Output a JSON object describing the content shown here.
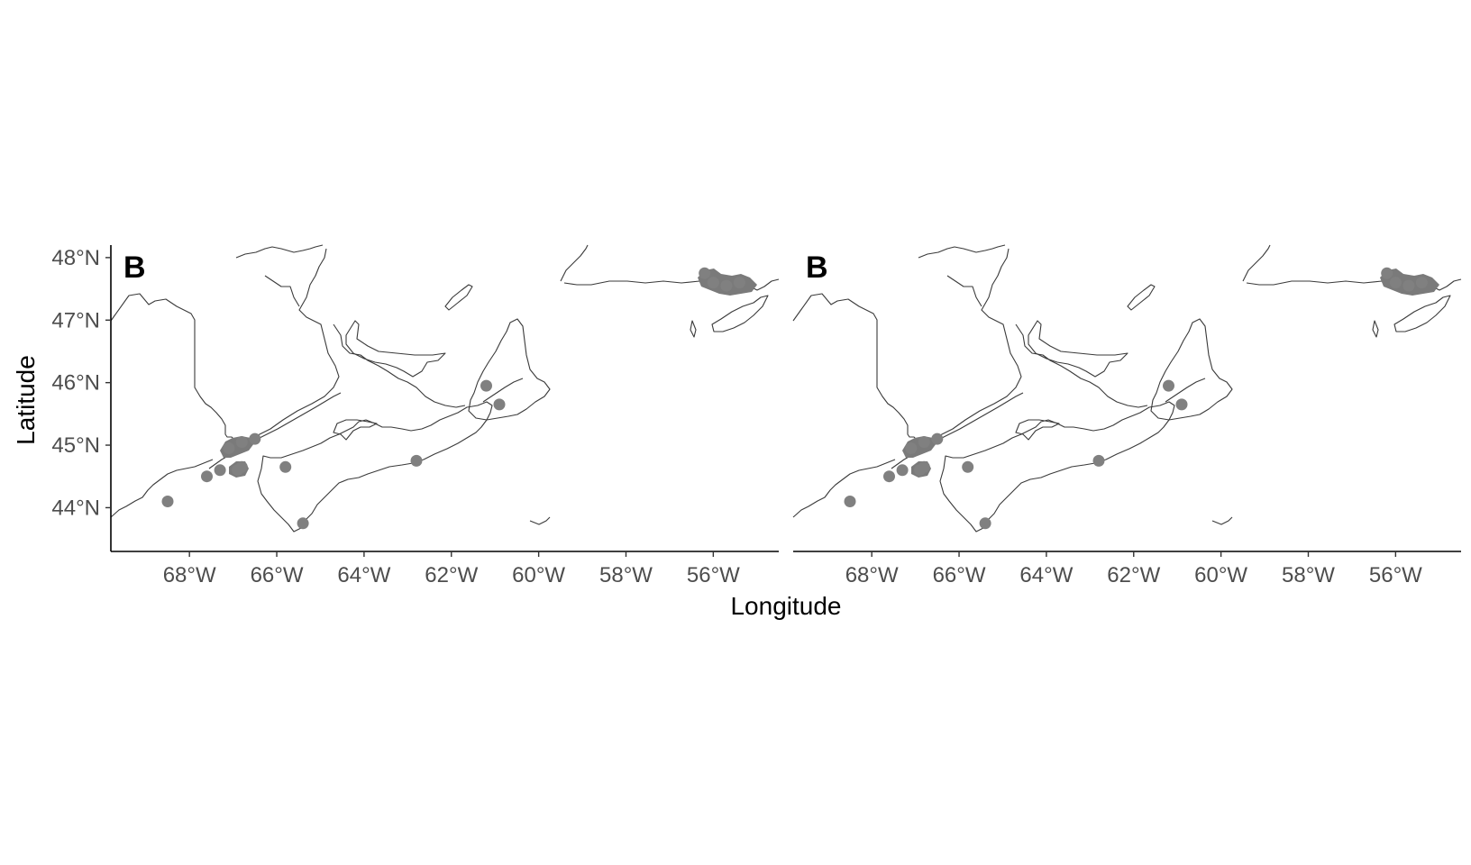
{
  "chart_data": {
    "type": "scatter",
    "x_axis_label": "Longitude",
    "y_axis_label": "Latitude",
    "x_range": [
      -69.8,
      -54.5
    ],
    "y_range": [
      43.3,
      48.2
    ],
    "x_ticks": [
      {
        "value": -68,
        "label": "68°W"
      },
      {
        "value": -66,
        "label": "66°W"
      },
      {
        "value": -64,
        "label": "64°W"
      },
      {
        "value": -62,
        "label": "62°W"
      },
      {
        "value": -60,
        "label": "60°W"
      },
      {
        "value": -58,
        "label": "58°W"
      },
      {
        "value": -56,
        "label": "56°W"
      }
    ],
    "y_ticks": [
      {
        "value": 48,
        "label": "48°N"
      },
      {
        "value": 47,
        "label": "47°N"
      },
      {
        "value": 46,
        "label": "46°N"
      },
      {
        "value": 45,
        "label": "45°N"
      },
      {
        "value": 44,
        "label": "44°N"
      }
    ],
    "grid": false,
    "point_color": "#808080",
    "panels": [
      {
        "tag": "B",
        "points": [
          {
            "lon": -68.5,
            "lat": 44.1
          },
          {
            "lon": -67.6,
            "lat": 44.5
          },
          {
            "lon": -67.3,
            "lat": 44.6
          },
          {
            "lon": -66.8,
            "lat": 44.65
          },
          {
            "lon": -66.9,
            "lat": 44.6
          },
          {
            "lon": -67.1,
            "lat": 44.95
          },
          {
            "lon": -66.8,
            "lat": 45.05
          },
          {
            "lon": -66.5,
            "lat": 45.1
          },
          {
            "lon": -65.8,
            "lat": 44.65
          },
          {
            "lon": -65.4,
            "lat": 43.75
          },
          {
            "lon": -62.8,
            "lat": 44.75
          },
          {
            "lon": -61.2,
            "lat": 45.95
          },
          {
            "lon": -60.9,
            "lat": 45.65
          },
          {
            "lon": -56.0,
            "lat": 47.6
          },
          {
            "lon": -55.7,
            "lat": 47.55
          },
          {
            "lon": -55.4,
            "lat": 47.6
          },
          {
            "lon": -56.2,
            "lat": 47.75
          }
        ]
      },
      {
        "tag": "B",
        "points": [
          {
            "lon": -68.5,
            "lat": 44.1
          },
          {
            "lon": -67.6,
            "lat": 44.5
          },
          {
            "lon": -67.3,
            "lat": 44.6
          },
          {
            "lon": -66.8,
            "lat": 44.65
          },
          {
            "lon": -66.9,
            "lat": 44.6
          },
          {
            "lon": -67.1,
            "lat": 44.95
          },
          {
            "lon": -66.8,
            "lat": 45.05
          },
          {
            "lon": -66.5,
            "lat": 45.1
          },
          {
            "lon": -65.8,
            "lat": 44.65
          },
          {
            "lon": -65.4,
            "lat": 43.75
          },
          {
            "lon": -62.8,
            "lat": 44.75
          },
          {
            "lon": -61.2,
            "lat": 45.95
          },
          {
            "lon": -60.9,
            "lat": 45.65
          },
          {
            "lon": -56.0,
            "lat": 47.6
          },
          {
            "lon": -55.7,
            "lat": 47.55
          },
          {
            "lon": -55.4,
            "lat": 47.6
          },
          {
            "lon": -56.2,
            "lat": 47.75
          }
        ]
      }
    ]
  }
}
